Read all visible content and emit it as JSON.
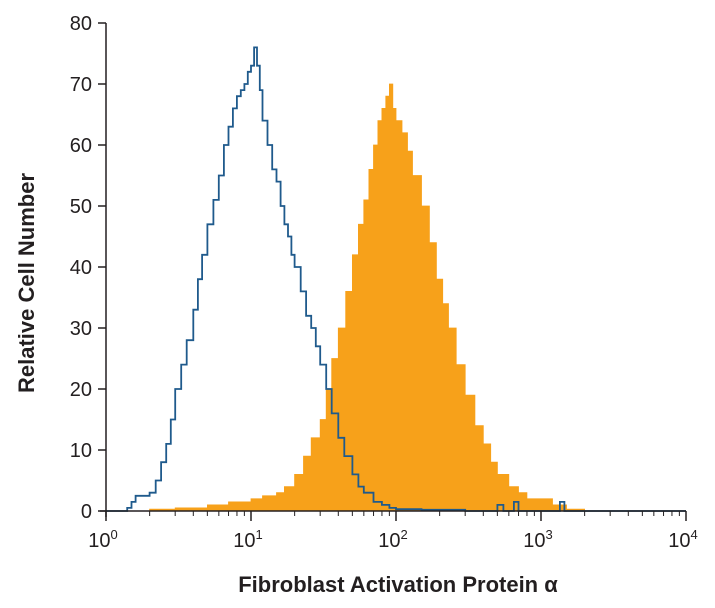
{
  "chart_data": {
    "type": "area",
    "xlabel": "Fibroblast Activation Protein α",
    "ylabel": "Relative Cell Number",
    "x_scale": "log",
    "xlim": [
      1,
      10000
    ],
    "ylim": [
      0,
      80
    ],
    "grid": false,
    "x_ticks": [
      {
        "value": 1,
        "base": "10",
        "exp": "0"
      },
      {
        "value": 10,
        "base": "10",
        "exp": "1"
      },
      {
        "value": 100,
        "base": "10",
        "exp": "2"
      },
      {
        "value": 1000,
        "base": "10",
        "exp": "3"
      },
      {
        "value": 10000,
        "base": "10",
        "exp": "4"
      }
    ],
    "y_ticks": [
      0,
      10,
      20,
      30,
      40,
      50,
      60,
      70,
      80
    ],
    "series": [
      {
        "style": "outline",
        "color": "#1f5a8c",
        "points": [
          [
            1.0,
            0
          ],
          [
            1.2,
            0
          ],
          [
            1.4,
            0.5
          ],
          [
            1.5,
            1.5
          ],
          [
            1.6,
            2.5
          ],
          [
            1.8,
            2.5
          ],
          [
            2.0,
            3
          ],
          [
            2.2,
            5
          ],
          [
            2.4,
            8
          ],
          [
            2.6,
            11
          ],
          [
            2.8,
            15
          ],
          [
            3.0,
            20
          ],
          [
            3.3,
            24
          ],
          [
            3.6,
            28
          ],
          [
            4.0,
            33
          ],
          [
            4.3,
            38
          ],
          [
            4.6,
            42
          ],
          [
            5.0,
            47
          ],
          [
            5.5,
            51
          ],
          [
            6.0,
            55
          ],
          [
            6.5,
            60
          ],
          [
            7.0,
            63
          ],
          [
            7.5,
            66
          ],
          [
            8.0,
            68
          ],
          [
            8.5,
            69
          ],
          [
            9.0,
            70
          ],
          [
            9.5,
            72
          ],
          [
            10.0,
            73
          ],
          [
            10.5,
            76
          ],
          [
            11.0,
            73
          ],
          [
            11.5,
            69
          ],
          [
            12.0,
            64
          ],
          [
            13.0,
            60
          ],
          [
            14.0,
            56
          ],
          [
            15.0,
            54
          ],
          [
            16.0,
            50
          ],
          [
            17.0,
            47
          ],
          [
            18.0,
            45
          ],
          [
            19.0,
            42
          ],
          [
            20.0,
            40
          ],
          [
            22.0,
            36
          ],
          [
            24.0,
            32
          ],
          [
            26.0,
            30
          ],
          [
            28.0,
            27
          ],
          [
            30.0,
            24
          ],
          [
            33.0,
            20
          ],
          [
            36.0,
            16
          ],
          [
            40.0,
            12
          ],
          [
            44.0,
            9
          ],
          [
            50.0,
            6
          ],
          [
            55.0,
            4
          ],
          [
            60.0,
            3
          ],
          [
            70.0,
            1.5
          ],
          [
            80.0,
            1
          ],
          [
            90.0,
            0.5
          ],
          [
            100.0,
            0.3
          ],
          [
            150.0,
            0.2
          ],
          [
            300.0,
            0
          ],
          [
            450.0,
            0
          ],
          [
            500.0,
            1
          ],
          [
            550.0,
            0
          ],
          [
            640.0,
            0
          ],
          [
            650.0,
            1.5
          ],
          [
            700.0,
            0
          ],
          [
            1300.0,
            0
          ],
          [
            1350.0,
            1.5
          ],
          [
            1450.0,
            0
          ],
          [
            10000.0,
            0
          ]
        ]
      },
      {
        "style": "filled",
        "color": "#f7a11a",
        "points": [
          [
            1.5,
            0
          ],
          [
            2.0,
            0.3
          ],
          [
            3.0,
            0.5
          ],
          [
            5.0,
            1
          ],
          [
            7.0,
            1.5
          ],
          [
            10.0,
            2
          ],
          [
            12.0,
            2.5
          ],
          [
            15.0,
            3
          ],
          [
            17.0,
            4
          ],
          [
            20.0,
            6
          ],
          [
            23.0,
            9
          ],
          [
            26.0,
            12
          ],
          [
            30.0,
            15
          ],
          [
            33.0,
            20
          ],
          [
            36.0,
            25
          ],
          [
            40.0,
            30
          ],
          [
            45.0,
            36
          ],
          [
            50.0,
            42
          ],
          [
            55.0,
            47
          ],
          [
            60.0,
            51
          ],
          [
            65.0,
            56
          ],
          [
            70.0,
            60
          ],
          [
            75.0,
            64
          ],
          [
            80.0,
            66
          ],
          [
            85.0,
            68
          ],
          [
            90.0,
            70
          ],
          [
            95.0,
            66
          ],
          [
            100.0,
            64
          ],
          [
            110.0,
            62
          ],
          [
            120.0,
            59
          ],
          [
            130.0,
            55
          ],
          [
            150.0,
            50
          ],
          [
            170.0,
            44
          ],
          [
            190.0,
            38
          ],
          [
            210.0,
            34
          ],
          [
            230.0,
            30
          ],
          [
            260.0,
            24
          ],
          [
            300.0,
            19
          ],
          [
            350.0,
            14
          ],
          [
            400.0,
            11
          ],
          [
            450.0,
            8
          ],
          [
            500.0,
            6
          ],
          [
            600.0,
            4
          ],
          [
            700.0,
            3
          ],
          [
            800.0,
            2
          ],
          [
            1000.0,
            2
          ],
          [
            1200.0,
            1
          ],
          [
            1500.0,
            0.3
          ],
          [
            2000.0,
            0
          ]
        ]
      }
    ]
  }
}
